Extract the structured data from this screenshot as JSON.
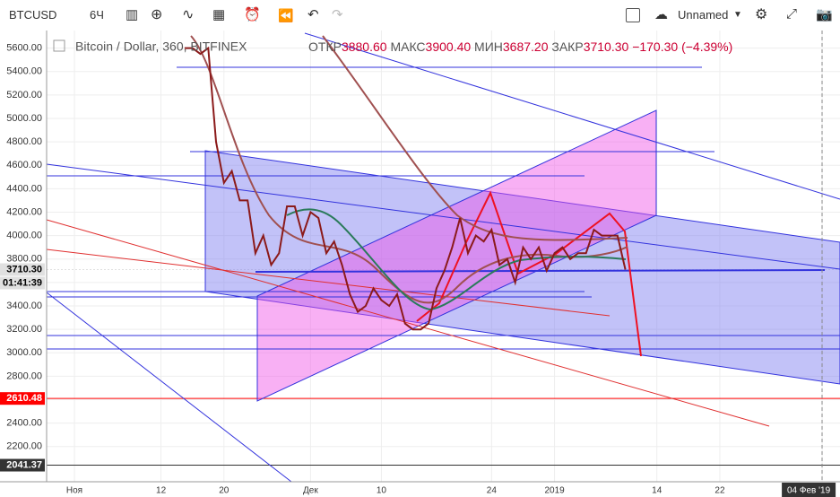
{
  "toolbar": {
    "symbol": "BTCUSD",
    "interval": "6Ч",
    "layout_name": "Unnamed"
  },
  "legend": {
    "title": "Bitcoin / Dollar, 360, BITFINEX",
    "open_label": "ОТКР",
    "open": "3880.60",
    "high_label": "МАКС",
    "high": "3900.40",
    "low_label": "МИН",
    "low": "3687.20",
    "close_label": "ЗАКР",
    "close": "3710.30",
    "change": "−170.30 (−4.39%)"
  },
  "countdown": "01:41:39",
  "chart_data": {
    "type": "line",
    "color": "#8b1a1a",
    "categories": [
      "Ноя",
      null,
      null,
      null,
      null,
      null,
      null,
      null,
      null,
      null,
      null,
      "12",
      null,
      null,
      null,
      null,
      null,
      null,
      null,
      "20",
      null,
      null,
      null,
      null,
      null,
      null,
      null,
      null,
      null,
      null,
      "Дек",
      null,
      null,
      null,
      null,
      null,
      null,
      null,
      null,
      "10",
      null,
      null,
      null,
      null,
      null,
      null,
      null,
      null,
      null,
      null,
      null,
      null,
      null,
      "24",
      null,
      null,
      null,
      null,
      null,
      null,
      null,
      "2019",
      null,
      null,
      null,
      null,
      null,
      null,
      null,
      null,
      null,
      null,
      null,
      null,
      "14",
      null,
      null,
      null,
      null,
      null,
      null,
      null,
      "22",
      null,
      null,
      null,
      null,
      null,
      null,
      null,
      null,
      null,
      null,
      null,
      null,
      "04 Фев '19"
    ],
    "values": [
      null,
      null,
      null,
      null,
      null,
      null,
      null,
      null,
      null,
      null,
      null,
      null,
      null,
      null,
      5600,
      5600,
      5550,
      5600,
      4800,
      4450,
      4550,
      4300,
      4300,
      3850,
      4000,
      3750,
      3850,
      4250,
      4250,
      4000,
      4200,
      4150,
      3850,
      3950,
      3750,
      3500,
      3350,
      3400,
      3550,
      3450,
      3400,
      3500,
      3250,
      3200,
      3200,
      3250,
      3550,
      3700,
      3900,
      4150,
      3850,
      4000,
      3950,
      4050,
      3750,
      3800,
      3600,
      3900,
      3800,
      3900,
      3700,
      3850,
      3900,
      3800,
      3850,
      3850,
      4050,
      4000,
      4000,
      4000,
      3710.3,
      null,
      null,
      null,
      null,
      null,
      null,
      null,
      null,
      null,
      null,
      null,
      null,
      null,
      null,
      null,
      null,
      null,
      null,
      null,
      null,
      null,
      null,
      null,
      null,
      null
    ],
    "ylim": [
      1900,
      5750
    ],
    "yticks": [
      {
        "value": 2200,
        "label": "2200.00"
      },
      {
        "value": 2400,
        "label": "2400.00"
      },
      {
        "value": 2600,
        "label": "2600.00"
      },
      {
        "value": 2800,
        "label": "2800.00"
      },
      {
        "value": 3000,
        "label": "3000.00"
      },
      {
        "value": 3200,
        "label": "3200.00"
      },
      {
        "value": 3400,
        "label": "3400.00"
      },
      {
        "value": 3600,
        "label": "3600.00"
      },
      {
        "value": 3800,
        "label": "3800.00"
      },
      {
        "value": 4000,
        "label": "4000.00"
      },
      {
        "value": 4200,
        "label": "4200.00"
      },
      {
        "value": 4400,
        "label": "4400.00"
      },
      {
        "value": 4600,
        "label": "4600.00"
      },
      {
        "value": 4800,
        "label": "4800.00"
      },
      {
        "value": 5000,
        "label": "5000.00"
      },
      {
        "value": 5200,
        "label": "5200.00"
      },
      {
        "value": 5400,
        "label": "5400.00"
      },
      {
        "value": 5600,
        "label": "5600.00"
      }
    ],
    "grid": true,
    "price_labels": [
      {
        "value": 3710.3,
        "label": "3710.30",
        "color": "#e0e0e0"
      },
      {
        "value": 2610.48,
        "label": "2610.48",
        "color": "#ff0000"
      },
      {
        "value": 2041.37,
        "label": "2041.37",
        "color": "#333333"
      }
    ]
  }
}
